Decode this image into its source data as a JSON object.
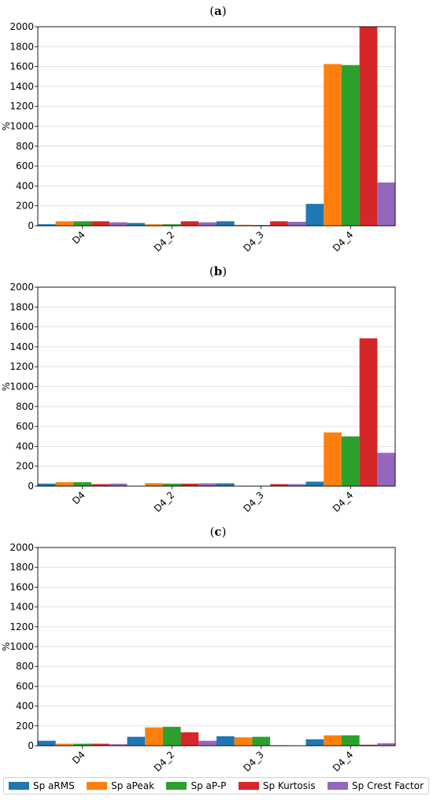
{
  "colors": {
    "Sp aRMS": "#1f77b4",
    "Sp aPeak": "#ff7f0e",
    "Sp aP-P": "#2ca02c",
    "Sp Kurtosis": "#d62728",
    "Sp Crest Factor": "#9467bd"
  },
  "legend": [
    "Sp aRMS",
    "Sp aPeak",
    "Sp aP-P",
    "Sp Kurtosis",
    "Sp Crest Factor"
  ],
  "chart_data": [
    {
      "type": "bar",
      "panel": "(a)",
      "panel_letter": "a",
      "ylabel": "%",
      "ylim": [
        0,
        2000
      ],
      "yticks": [
        0,
        200,
        400,
        600,
        800,
        1000,
        1200,
        1400,
        1600,
        1800,
        2000
      ],
      "grid": true,
      "categories": [
        "D4",
        "D4_2",
        "D4_3",
        "D4_4"
      ],
      "series": [
        {
          "name": "Sp aRMS",
          "values": [
            15,
            28,
            45,
            220
          ]
        },
        {
          "name": "Sp aPeak",
          "values": [
            45,
            15,
            10,
            1625
          ]
        },
        {
          "name": "Sp aP-P",
          "values": [
            45,
            15,
            8,
            1615
          ]
        },
        {
          "name": "Sp Kurtosis",
          "values": [
            45,
            45,
            45,
            2000
          ]
        },
        {
          "name": "Sp Crest Factor",
          "values": [
            35,
            35,
            40,
            435
          ]
        }
      ]
    },
    {
      "type": "bar",
      "panel": "(b)",
      "panel_letter": "b",
      "ylabel": "%",
      "ylim": [
        0,
        2000
      ],
      "yticks": [
        0,
        200,
        400,
        600,
        800,
        1000,
        1200,
        1400,
        1600,
        1800,
        2000
      ],
      "grid": true,
      "categories": [
        "D4",
        "D4_2",
        "D4_3",
        "D4_4"
      ],
      "series": [
        {
          "name": "Sp aRMS",
          "values": [
            25,
            0,
            28,
            45
          ]
        },
        {
          "name": "Sp aPeak",
          "values": [
            40,
            30,
            3,
            540
          ]
        },
        {
          "name": "Sp aP-P",
          "values": [
            40,
            25,
            3,
            500
          ]
        },
        {
          "name": "Sp Kurtosis",
          "values": [
            20,
            25,
            20,
            1485
          ]
        },
        {
          "name": "Sp Crest Factor",
          "values": [
            25,
            28,
            20,
            335
          ]
        }
      ]
    },
    {
      "type": "bar",
      "panel": "(c)",
      "panel_letter": "c",
      "ylabel": "%",
      "ylim": [
        0,
        2000
      ],
      "yticks": [
        0,
        200,
        400,
        600,
        800,
        1000,
        1200,
        1400,
        1600,
        1800,
        2000
      ],
      "grid": true,
      "categories": [
        "D4",
        "D4_2",
        "D4_3",
        "D4_4"
      ],
      "series": [
        {
          "name": "Sp aRMS",
          "values": [
            50,
            90,
            95,
            65
          ]
        },
        {
          "name": "Sp aPeak",
          "values": [
            20,
            185,
            85,
            105
          ]
        },
        {
          "name": "Sp aP-P",
          "values": [
            20,
            190,
            90,
            105
          ]
        },
        {
          "name": "Sp Kurtosis",
          "values": [
            20,
            135,
            5,
            10
          ]
        },
        {
          "name": "Sp Crest Factor",
          "values": [
            15,
            50,
            3,
            25
          ]
        }
      ]
    }
  ]
}
